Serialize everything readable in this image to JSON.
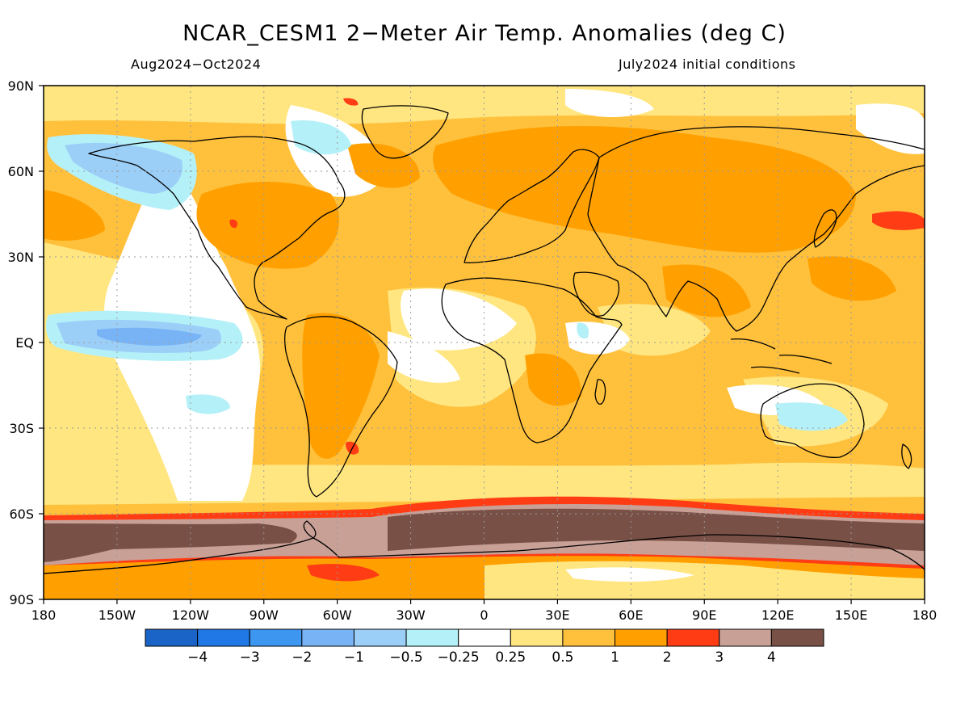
{
  "header": {
    "title": "NCAR_CESM1 2−Meter Air Temp. Anomalies (deg C)",
    "period": "Aug2024−Oct2024",
    "init": "July2024 initial conditions"
  },
  "axes": {
    "lat_labels": [
      "90N",
      "60N",
      "30N",
      "EQ",
      "30S",
      "60S",
      "90S"
    ],
    "lon_labels": [
      "180",
      "150W",
      "120W",
      "90W",
      "60W",
      "30W",
      "0",
      "30E",
      "60E",
      "90E",
      "120E",
      "150E",
      "180"
    ]
  },
  "legend": {
    "colors": [
      "#1a64c8",
      "#1f78e6",
      "#3d96f0",
      "#78b4f5",
      "#9ccff8",
      "#b4f0f8",
      "#ffffff",
      "#ffe680",
      "#ffc03c",
      "#ffa000",
      "#ff3c14",
      "#c8a096",
      "#785046"
    ],
    "labels": [
      "−4",
      "−3",
      "−2",
      "−1",
      "−0.5",
      "−0.25",
      "0.25",
      "0.5",
      "1",
      "2",
      "3",
      "4"
    ]
  }
}
